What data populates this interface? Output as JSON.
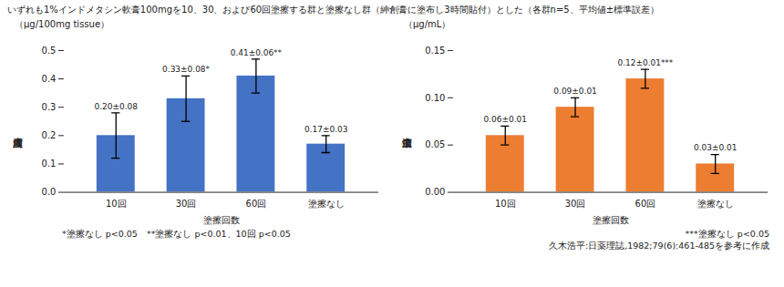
{
  "title": "いずれも1%インドメタシン軟膏100mgを10、30、および60回塗擦する群と塗擦なし群（紳創膏に塗布し3時間貼付）とした（各群n=5、平均値±標準誤差）",
  "annotations": [
    "久木浩平:日薬理誌,1982;79(6):461-485を参考に作成"
  ],
  "chart_data": [
    {
      "type": "bar",
      "ylabel": "皮膚内濃度",
      "xlabel": "塗擦回数",
      "annotations": [
        "（μg/100mg tissue）",
        "*塗擦なし p<0.05　**塗擦なし p<0.01、10回 p<0.05"
      ],
      "categories": [
        "10回",
        "30回",
        "60回",
        "塗擦なし"
      ],
      "values": [
        0.2,
        0.33,
        0.41,
        0.17
      ],
      "errors": [
        0.08,
        0.08,
        0.06,
        0.03
      ],
      "value_labels": [
        "0.20±0.08",
        "0.33±0.08*",
        "0.41±0.06**",
        "0.17±0.03"
      ],
      "data_labels": true,
      "color": "#4472C4",
      "ylim": [
        0,
        0.5
      ],
      "yticks": [
        {
          "value": 0,
          "label": "0.0"
        },
        0.1,
        0.2,
        0.3,
        0.4,
        0.5
      ],
      "grid": false
    },
    {
      "type": "bar",
      "ylabel": "血清中濃度",
      "xlabel": "塗擦回数",
      "annotations": [
        "（μg/mL）",
        "***塗擦なし p<0.05"
      ],
      "categories": [
        "10回",
        "30回",
        "60回",
        "塗擦なし"
      ],
      "values": [
        0.06,
        0.09,
        0.12,
        0.03
      ],
      "errors": [
        0.01,
        0.01,
        0.01,
        0.01
      ],
      "value_labels": [
        "0.06±0.01",
        "0.09±0.01",
        "0.12±0.01***",
        "0.03±0.01"
      ],
      "data_labels": true,
      "color": "#ED7D31",
      "ylim": [
        0,
        0.15
      ],
      "yticks": [
        {
          "value": 0,
          "label": "0.00"
        },
        0.05,
        {
          "value": 0.1,
          "label": "0.10"
        },
        0.15
      ],
      "grid": false
    }
  ]
}
